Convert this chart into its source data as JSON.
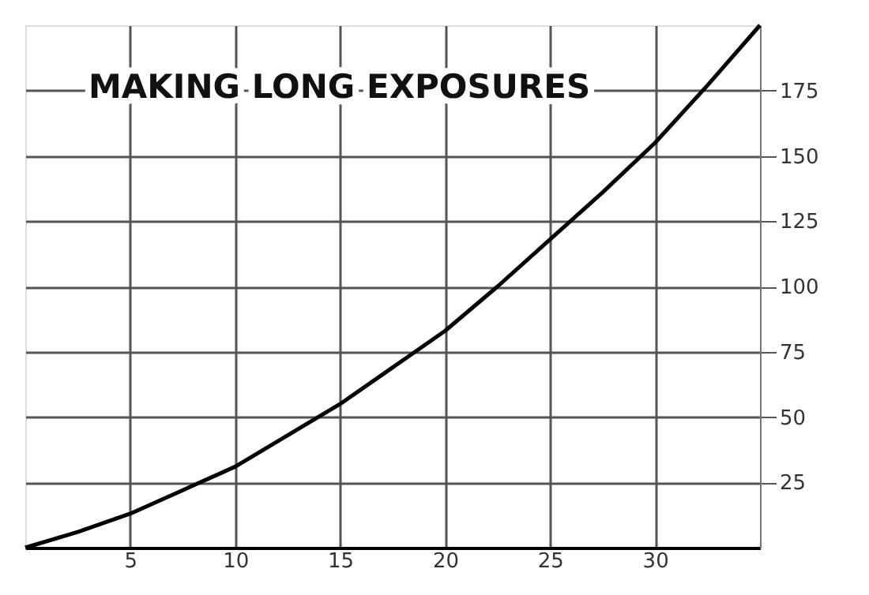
{
  "chart_data": {
    "type": "line",
    "title": "MAKING LONG EXPOSURES",
    "x": [
      0,
      2.5,
      5,
      7.5,
      10,
      12.5,
      15,
      17.5,
      20,
      22.5,
      25,
      27.5,
      30,
      32.5,
      35
    ],
    "series": [
      {
        "color": "#000000",
        "values": [
          0,
          6,
          13,
          22,
          31,
          43,
          55,
          69,
          83,
          100,
          118,
          136,
          155,
          177,
          200
        ]
      }
    ],
    "xlim": [
      0,
      35
    ],
    "xticks": [
      5,
      10,
      15,
      20,
      25,
      30
    ],
    "ylim": [
      0,
      200
    ],
    "yticks": [
      25,
      50,
      75,
      100,
      125,
      150,
      175
    ],
    "grid": true,
    "marker": "none",
    "line_style": "solid"
  }
}
